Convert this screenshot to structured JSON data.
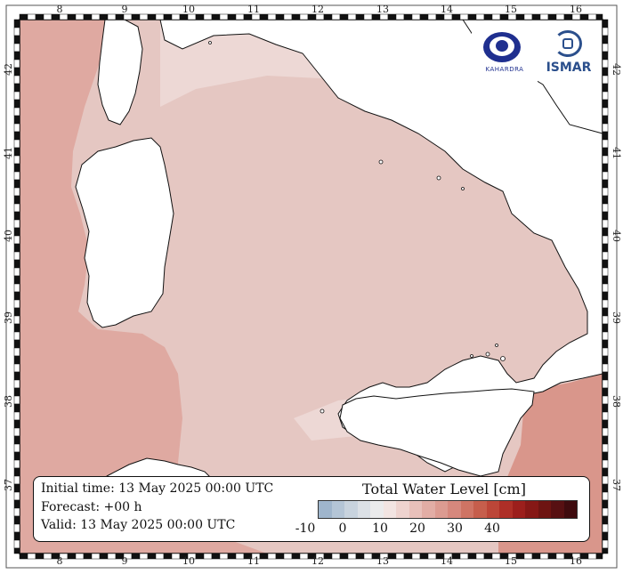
{
  "map": {
    "lon_ticks": [
      "8",
      "9",
      "10",
      "11",
      "12",
      "13",
      "14",
      "15",
      "16"
    ],
    "lat_ticks": [
      "37",
      "38",
      "39",
      "40",
      "41",
      "42"
    ],
    "colors": {
      "sea_base": "#e8cac6",
      "sea_west": "#dfa79f",
      "sea_light": "#efdddb",
      "land": "#ffffff",
      "coast": "#111111"
    }
  },
  "info": {
    "initial_time": "Initial time: 13 May 2025 00:00 UTC",
    "forecast": "Forecast: +00 h",
    "valid": "Valid: 13 May 2025 00:00 UTC"
  },
  "colorbar": {
    "title": "Total Water Level [cm]",
    "labels": [
      "-10",
      "0",
      "10",
      "20",
      "30",
      "40"
    ],
    "colors": [
      "#9fb5cc",
      "#b4c5d6",
      "#c8d3de",
      "#dbe0e6",
      "#ebebec",
      "#f2e4e2",
      "#eed3cf",
      "#e8c0ba",
      "#e2ada5",
      "#dc9b91",
      "#d6887d",
      "#cf7464",
      "#c65e4c",
      "#bc4638",
      "#ae2f27",
      "#9c1f1c",
      "#861816",
      "#6e1412",
      "#571012",
      "#3f0b0e"
    ]
  },
  "logos": {
    "left_text": "KAHARDRA",
    "right_text": "ISMAR"
  }
}
